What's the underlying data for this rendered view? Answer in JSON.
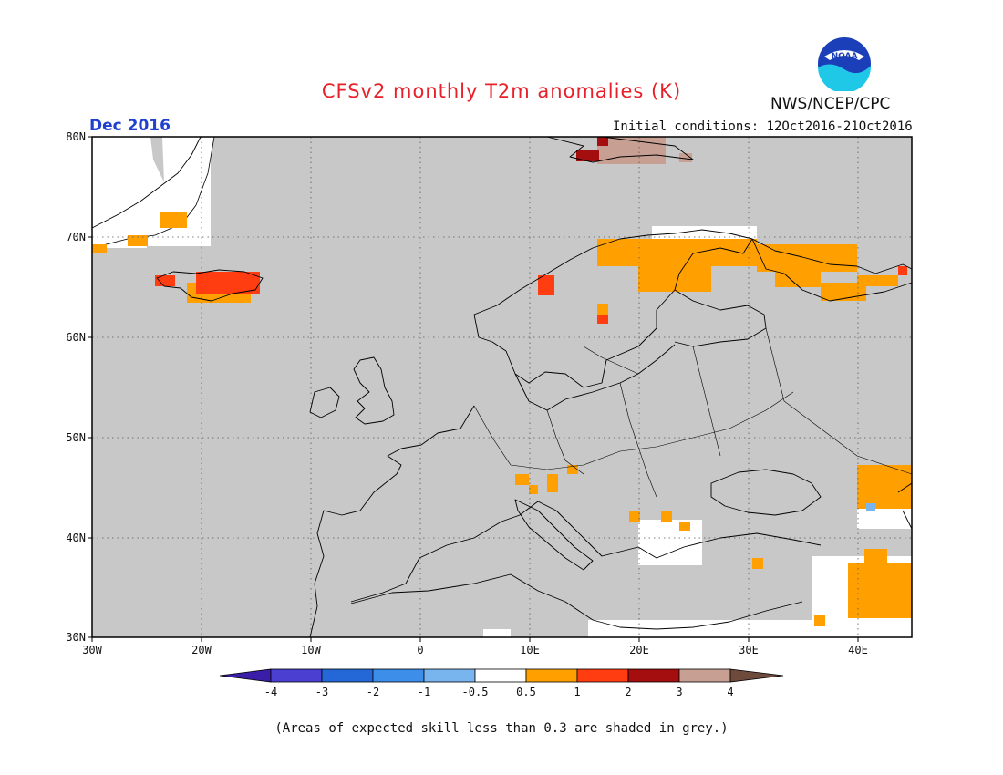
{
  "title": "CFSv2 monthly T2m anomalies (K)",
  "agency": "NWS/NCEP/CPC",
  "logo_text": "NOAA",
  "valid_month": "Dec 2016",
  "initial_conditions": "Initial conditions: 12Oct2016-21Oct2016",
  "footnote": "(Areas of expected skill less than 0.3 are shaded in grey.)",
  "map": {
    "projection": "lat-lon",
    "lon_range": [
      -30,
      45
    ],
    "lat_range": [
      30,
      80
    ],
    "lat_labels": [
      "80N",
      "70N",
      "60N",
      "50N",
      "40N",
      "30N"
    ],
    "lon_labels": [
      "30W",
      "20W",
      "10W",
      "0",
      "10E",
      "20E",
      "30E",
      "40E"
    ],
    "grid": "dotted",
    "skill_mask_color": "#c8c8c8"
  },
  "colorbar": {
    "labels": [
      "-4",
      "-3",
      "-2",
      "-1",
      "-0.5",
      "0.5",
      "1",
      "2",
      "3",
      "4"
    ],
    "colors": [
      "#3b1ea8",
      "#4a3fd0",
      "#2468d8",
      "#3c8ee8",
      "#78b4ee",
      "#ffffff",
      "#ffa000",
      "#ff3d10",
      "#a50e0e",
      "#c8a093",
      "#6e4a3c"
    ]
  },
  "anomaly_regions": [
    {
      "name": "Iceland",
      "category": "1 to 2",
      "color": "#ff3d10"
    },
    {
      "name": "Iceland south coast",
      "category": "0.5 to 1",
      "color": "#ffa000"
    },
    {
      "name": "Norway coast",
      "category": "1 to 2",
      "color": "#ff3d10"
    },
    {
      "name": "Northern Scandinavia",
      "category": "0.5 to 1",
      "color": "#ffa000"
    },
    {
      "name": "Kola / NW Russia",
      "category": "0.5 to 1",
      "color": "#ffa000"
    },
    {
      "name": "Svalbard",
      "category": "3 to 4",
      "color": "#c8a093"
    },
    {
      "name": "Alps",
      "category": "0.5 to 1",
      "color": "#ffa000"
    },
    {
      "name": "Caucasus",
      "category": "0.5 to 1",
      "color": "#ffa000"
    },
    {
      "name": "Middle East",
      "category": "0.5 to 1",
      "color": "#ffa000"
    }
  ]
}
